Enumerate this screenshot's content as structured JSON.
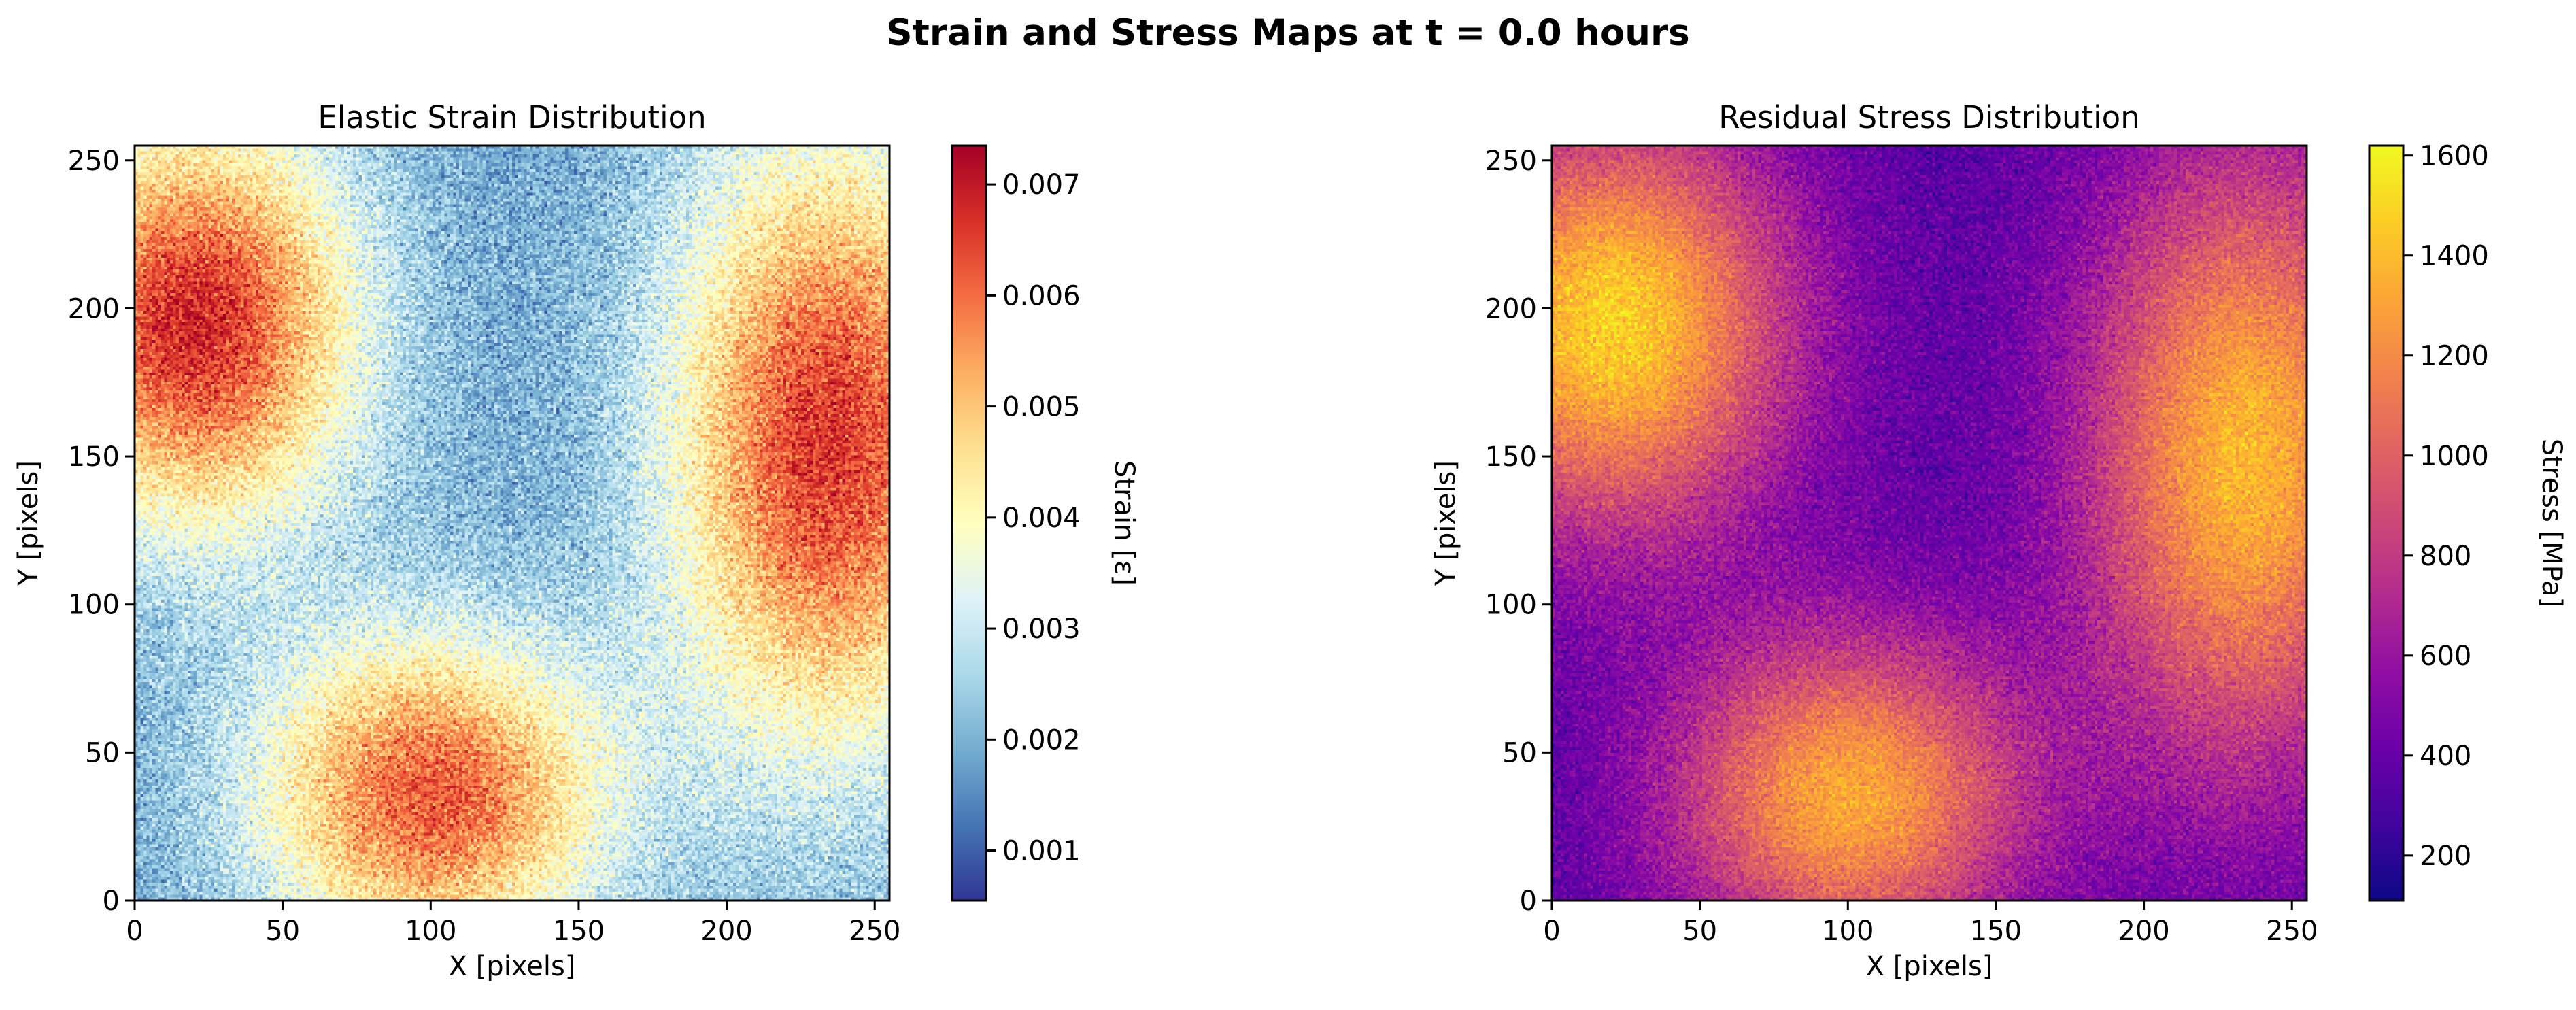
{
  "figure": {
    "suptitle": "Strain and Stress Maps at t = 0.0 hours"
  },
  "chart_data": [
    {
      "type": "heatmap",
      "title": "Elastic Strain Distribution",
      "xlabel": "X [pixels]",
      "ylabel": "Y [pixels]",
      "xlim": [
        0,
        255
      ],
      "ylim": [
        0,
        255
      ],
      "xticks": [
        "0",
        "50",
        "100",
        "150",
        "200",
        "250"
      ],
      "yticks": [
        "0",
        "50",
        "100",
        "150",
        "200",
        "250"
      ],
      "colormap": "RdYlBu_r",
      "colorbar": {
        "label": "Strain [ε]",
        "range": [
          0.00055,
          0.00735
        ],
        "ticks": [
          "0.001",
          "0.002",
          "0.003",
          "0.004",
          "0.005",
          "0.006",
          "0.007"
        ],
        "tick_values": [
          0.001,
          0.002,
          0.003,
          0.004,
          0.005,
          0.006,
          0.007
        ]
      },
      "field": {
        "background": 0.0018,
        "noise": 0.0009,
        "hotspots": [
          {
            "x": 20,
            "y": 195,
            "peak": 0.0068,
            "x_extent": 55,
            "y_extent": 70
          },
          {
            "x": 235,
            "y": 155,
            "peak": 0.0066,
            "x_extent": 55,
            "y_extent": 105
          },
          {
            "x": 100,
            "y": 35,
            "peak": 0.0062,
            "x_extent": 60,
            "y_extent": 55
          }
        ]
      }
    },
    {
      "type": "heatmap",
      "title": "Residual Stress Distribution",
      "xlabel": "X [pixels]",
      "ylabel": "Y [pixels]",
      "xlim": [
        0,
        255
      ],
      "ylim": [
        0,
        255
      ],
      "xticks": [
        "0",
        "50",
        "100",
        "150",
        "200",
        "250"
      ],
      "yticks": [
        "0",
        "50",
        "100",
        "150",
        "200",
        "250"
      ],
      "colormap": "plasma",
      "colorbar": {
        "label": "Stress [MPa]",
        "range": [
          110,
          1620
        ],
        "ticks": [
          "200",
          "400",
          "600",
          "800",
          "1000",
          "1200",
          "1400",
          "1600"
        ],
        "tick_values": [
          200,
          400,
          600,
          800,
          1000,
          1200,
          1400,
          1600
        ]
      },
      "field": {
        "background": 330,
        "noise": 160,
        "hotspots": [
          {
            "x": 20,
            "y": 195,
            "peak": 1480,
            "x_extent": 60,
            "y_extent": 70
          },
          {
            "x": 235,
            "y": 150,
            "peak": 1380,
            "x_extent": 55,
            "y_extent": 105
          },
          {
            "x": 100,
            "y": 35,
            "peak": 1320,
            "x_extent": 60,
            "y_extent": 55
          }
        ]
      }
    }
  ]
}
